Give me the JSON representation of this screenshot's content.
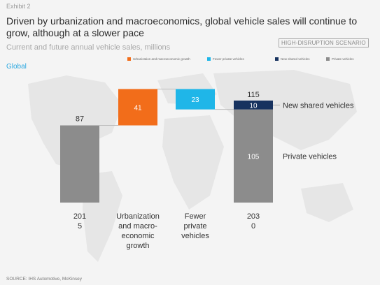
{
  "header": {
    "exhibit": "Exhibit 2",
    "title": "Driven by urbanization and macroeconomics, global vehicle sales will continue to grow, although at a slower pace",
    "subtitle": "Current and future annual vehicle sales, millions",
    "scenario": "HIGH-DISRUPTION SCENARIO",
    "region": "Global"
  },
  "legend": [
    {
      "label": "Urbanization and macroeconomic growth",
      "color": "#f26d1a"
    },
    {
      "label": "Fewer private vehicles",
      "color": "#1fb6e8"
    },
    {
      "label": "New shared vehicles",
      "color": "#17325f"
    },
    {
      "label": "Private vehicles",
      "color": "#8c8c8c"
    }
  ],
  "chart_data": {
    "type": "bar",
    "subtype": "waterfall",
    "categories": [
      "2015",
      "Urbanization and macro-economic growth",
      "Fewer private vehicles",
      "2030"
    ],
    "category_labels": [
      [
        "201",
        "5"
      ],
      [
        "Urbanization",
        "and macro-",
        "economic",
        "growth"
      ],
      [
        "Fewer",
        "private",
        "vehicles"
      ],
      [
        "203",
        "0"
      ]
    ],
    "bars": [
      {
        "category": "2015",
        "start": 0,
        "end": 87,
        "label": "87",
        "label_position": "above",
        "color": "#8c8c8c"
      },
      {
        "category": "Urbanization and macro-economic growth",
        "start": 87,
        "end": 128,
        "label": "41",
        "label_position": "inside",
        "color": "#f26d1a"
      },
      {
        "category": "Fewer private vehicles",
        "start": 105,
        "end": 128,
        "label": "23",
        "label_position": "inside",
        "color": "#1fb6e8"
      },
      {
        "category": "2030",
        "start": 0,
        "end": 105,
        "label": "105",
        "label_position": "inside",
        "color": "#8c8c8c"
      },
      {
        "category": "2030",
        "start": 105,
        "end": 115,
        "label": "10",
        "label_position": "inside",
        "color": "#17325f"
      }
    ],
    "totals": [
      {
        "category": "2030",
        "value": 115,
        "label": "115"
      }
    ],
    "annotations": [
      "New shared vehicles",
      "Private vehicles"
    ],
    "ylim": [
      0,
      140
    ]
  },
  "source": "SOURCE: IHS Automotive, McKinsey"
}
